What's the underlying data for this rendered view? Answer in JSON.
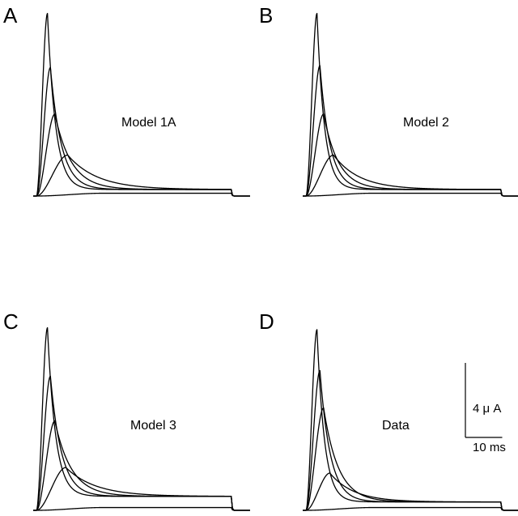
{
  "chart_data": [
    {
      "type": "line",
      "panel": "A",
      "label": "Model 1A",
      "x_unit": "ms",
      "y_unit": "μA",
      "pulse_end_ms": 53,
      "steady_state_uA": 0.35,
      "series": [
        {
          "name": "trace 1",
          "peak_uA": 9.8,
          "t_peak_ms": 3.0,
          "decay_ms": 2.2
        },
        {
          "name": "trace 2",
          "peak_uA": 6.9,
          "t_peak_ms": 3.8,
          "decay_ms": 3.0
        },
        {
          "name": "trace 3",
          "peak_uA": 4.4,
          "t_peak_ms": 5.0,
          "decay_ms": 4.5
        },
        {
          "name": "trace 4",
          "peak_uA": 2.2,
          "t_peak_ms": 8.5,
          "decay_ms": 8.0
        },
        {
          "name": "trace 5",
          "peak_uA": 0.15,
          "t_peak_ms": 18,
          "decay_ms": 40
        }
      ]
    },
    {
      "type": "line",
      "panel": "B",
      "label": "Model 2",
      "x_unit": "ms",
      "y_unit": "μA",
      "pulse_end_ms": 53,
      "steady_state_uA": 0.35,
      "series": [
        {
          "name": "trace 1",
          "peak_uA": 9.8,
          "t_peak_ms": 3.0,
          "decay_ms": 2.0
        },
        {
          "name": "trace 2",
          "peak_uA": 7.0,
          "t_peak_ms": 3.8,
          "decay_ms": 2.7
        },
        {
          "name": "trace 3",
          "peak_uA": 4.4,
          "t_peak_ms": 4.8,
          "decay_ms": 4.0
        },
        {
          "name": "trace 4",
          "peak_uA": 2.2,
          "t_peak_ms": 7.5,
          "decay_ms": 7.0
        },
        {
          "name": "trace 5",
          "peak_uA": 0.15,
          "t_peak_ms": 18,
          "decay_ms": 40
        }
      ]
    },
    {
      "type": "line",
      "panel": "C",
      "label": "Model 3",
      "x_unit": "ms",
      "y_unit": "μA",
      "pulse_end_ms": 53,
      "steady_state_uA": 0.75,
      "series": [
        {
          "name": "trace 1",
          "peak_uA": 9.8,
          "t_peak_ms": 3.0,
          "decay_ms": 2.2
        },
        {
          "name": "trace 2",
          "peak_uA": 7.2,
          "t_peak_ms": 3.8,
          "decay_ms": 3.0
        },
        {
          "name": "trace 3",
          "peak_uA": 4.8,
          "t_peak_ms": 5.0,
          "decay_ms": 4.5
        },
        {
          "name": "trace 4",
          "peak_uA": 2.3,
          "t_peak_ms": 8.0,
          "decay_ms": 8.0
        },
        {
          "name": "trace 5",
          "peak_uA": 0.15,
          "t_peak_ms": 18,
          "decay_ms": 40
        }
      ]
    },
    {
      "type": "line",
      "panel": "D",
      "label": "Data",
      "x_unit": "ms",
      "y_unit": "μA",
      "pulse_end_ms": 53,
      "steady_state_uA": 0.45,
      "series": [
        {
          "name": "trace 1",
          "peak_uA": 9.7,
          "t_peak_ms": 3.0,
          "decay_ms": 2.0
        },
        {
          "name": "trace 2",
          "peak_uA": 7.5,
          "t_peak_ms": 3.8,
          "decay_ms": 2.8
        },
        {
          "name": "trace 3",
          "peak_uA": 5.5,
          "t_peak_ms": 4.8,
          "decay_ms": 4.0
        },
        {
          "name": "trace 4",
          "peak_uA": 2.0,
          "t_peak_ms": 6.5,
          "decay_ms": 6.5
        },
        {
          "name": "trace 5",
          "peak_uA": 0.15,
          "t_peak_ms": 18,
          "decay_ms": 40
        }
      ]
    }
  ],
  "scale_bar": {
    "vertical_value_uA": 4,
    "vertical_label": "4 μ A",
    "horizontal_value_ms": 10,
    "horizontal_label": "10 ms"
  }
}
